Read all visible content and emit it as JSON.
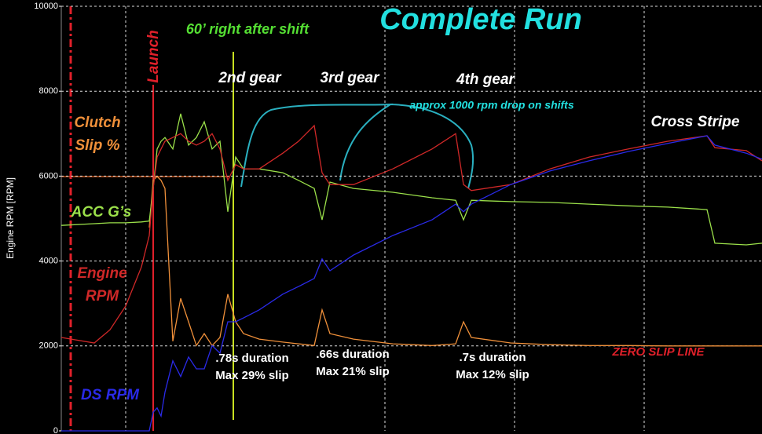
{
  "chart_data": {
    "type": "line",
    "title": "Complete Run",
    "y_label": "Engine RPM [RPM]",
    "ylim": [
      0,
      10000
    ],
    "yticks": [
      0,
      2000,
      4000,
      6000,
      8000,
      10000
    ],
    "grid": true,
    "xlim": [
      0,
      892
    ],
    "x": [
      0,
      42,
      62,
      82,
      102,
      112,
      117,
      122,
      127,
      132,
      142,
      152,
      162,
      172,
      182,
      192,
      202,
      212,
      222,
      232,
      252,
      282,
      302,
      322,
      332,
      342,
      372,
      422,
      472,
      502,
      512,
      522,
      572,
      622,
      672,
      722,
      772,
      822,
      832,
      872,
      892
    ],
    "series": [
      {
        "name": "Clutch Slip %",
        "color": "#f0903a",
        "values": [
          null,
          null,
          null,
          null,
          null,
          4790,
          5900,
          5990,
          5900,
          5710,
          2110,
          3120,
          2570,
          2010,
          2290,
          2010,
          2200,
          3220,
          2570,
          2290,
          2160,
          2090,
          2050,
          2010,
          2850,
          2290,
          2160,
          2050,
          2010,
          2050,
          2570,
          2200,
          2070,
          2030,
          2010,
          2010,
          2000,
          2000,
          2000,
          2000,
          2000
        ]
      },
      {
        "name": "ACC G’s",
        "color": "#9be04a",
        "values": [
          4840,
          4880,
          4900,
          4900,
          4920,
          4940,
          5710,
          6640,
          6820,
          6910,
          6640,
          7470,
          6730,
          6910,
          7280,
          6640,
          6820,
          5160,
          6450,
          6170,
          6170,
          6080,
          5900,
          5710,
          4970,
          5860,
          5710,
          5620,
          5490,
          5430,
          4970,
          5430,
          5400,
          5380,
          5340,
          5300,
          5270,
          5210,
          4420,
          4380,
          4420
        ]
      },
      {
        "name": "Engine RPM",
        "color": "#d02828",
        "values": [
          2200,
          2070,
          2380,
          2940,
          3860,
          4600,
          5710,
          6450,
          6640,
          6820,
          6910,
          7000,
          6820,
          6730,
          6820,
          7000,
          6640,
          5900,
          6270,
          6170,
          6170,
          6540,
          6820,
          7190,
          6080,
          5800,
          5800,
          6170,
          6640,
          7000,
          5800,
          5660,
          5800,
          6170,
          6450,
          6640,
          6820,
          6950,
          6670,
          6600,
          6360
        ]
      },
      {
        "name": "DS RPM",
        "color": "#2a2ae8",
        "values": [
          0,
          0,
          0,
          0,
          0,
          0,
          440,
          540,
          350,
          910,
          1650,
          1280,
          1740,
          1460,
          1460,
          2010,
          1830,
          2570,
          2570,
          2660,
          2850,
          3220,
          3400,
          3590,
          4050,
          3770,
          4140,
          4600,
          4970,
          5340,
          5160,
          5340,
          5800,
          6120,
          6360,
          6580,
          6770,
          6950,
          6730,
          6540,
          6400
        ]
      }
    ],
    "annotations": [
      "60’ right after shift",
      "2nd gear",
      "3rd gear",
      "4th gear",
      "approx  1000 rpm drop on shifts",
      "Cross Stripe",
      ".78s duration",
      "Max 29% slip",
      ".66s duration",
      "Max 21% slip",
      ".7s duration",
      "Max 12% slip",
      "ZERO SLIP LINE",
      "Launch"
    ]
  }
}
